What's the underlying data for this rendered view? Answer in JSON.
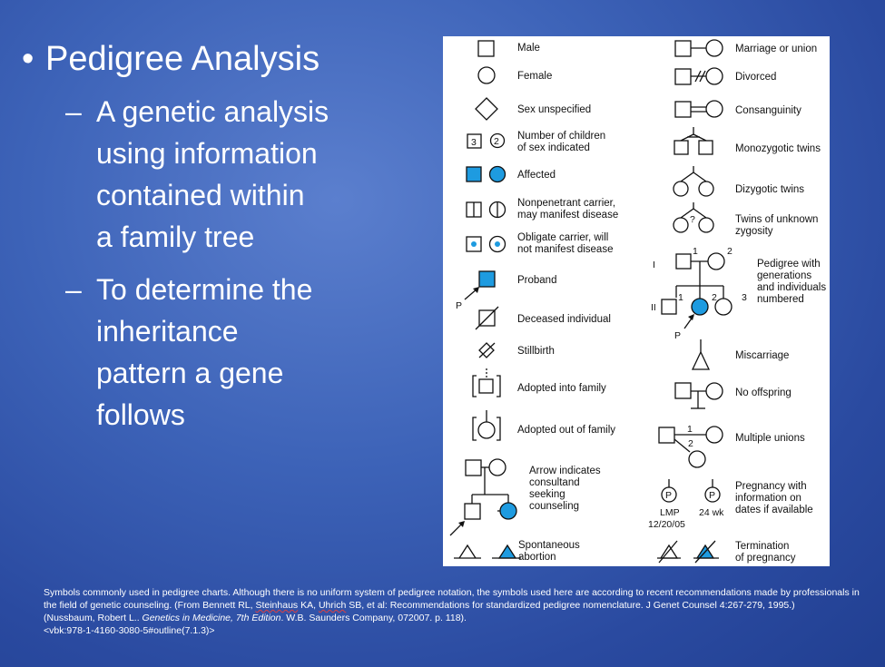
{
  "slide": {
    "bullet": "Pedigree Analysis",
    "subpoints": [
      "A genetic analysis\nusing information\ncontained within\na family tree",
      "To determine the\ninheritance\npattern a gene\nfollows"
    ]
  },
  "chart": {
    "left": [
      {
        "label": "Male"
      },
      {
        "label": "Female"
      },
      {
        "label": "Sex unspecified"
      },
      {
        "label": "Number of children of sex indicated",
        "line1": "Number of children",
        "line2": "of sex indicated",
        "n1": "3",
        "n2": "2"
      },
      {
        "label": "Affected"
      },
      {
        "label": "Nonpenetrant carrier, may manifest disease",
        "line1": "Nonpenetrant carrier,",
        "line2": "may manifest disease"
      },
      {
        "label": "Obligate carrier, will not manifest disease",
        "line1": "Obligate carrier, will",
        "line2": "not manifest disease"
      },
      {
        "label": "Proband",
        "p": "P"
      },
      {
        "label": "Deceased individual"
      },
      {
        "label": "Stillbirth"
      },
      {
        "label": "Adopted into family"
      },
      {
        "label": "Adopted out of family"
      },
      {
        "label": "Arrow indicates consultand seeking counseling",
        "lines": [
          "Arrow indicates",
          "consultand",
          "seeking",
          "counseling"
        ]
      },
      {
        "label": "Spontaneous abortion",
        "line1": "Spontaneous",
        "line2": "abortion"
      }
    ],
    "right": [
      {
        "label": "Marriage or union"
      },
      {
        "label": "Divorced"
      },
      {
        "label": "Consanguinity"
      },
      {
        "label": "Monozygotic twins"
      },
      {
        "label": "Dizygotic twins"
      },
      {
        "label": "Twins of unknown zygosity",
        "line1": "Twins of unknown",
        "line2": "zygosity",
        "q": "?"
      },
      {
        "label": "Pedigree with generations and individuals numbered",
        "lines": [
          "Pedigree with",
          "generations",
          "and individuals",
          "numbered"
        ],
        "gen1": "I",
        "gen2": "II",
        "n1": "1",
        "n2": "2",
        "n3": "1",
        "n4": "2",
        "n5": "3",
        "p": "P"
      },
      {
        "label": "Miscarriage"
      },
      {
        "label": "No offspring"
      },
      {
        "label": "Multiple unions",
        "n1": "1",
        "n2": "2"
      },
      {
        "label": "Pregnancy with information on dates if available",
        "lines": [
          "Pregnancy with",
          "information on",
          "dates if available"
        ],
        "p": "P",
        "lmp": "LMP",
        "date": "12/20/05",
        "wk": "24 wk"
      },
      {
        "label": "Termination of pregnancy",
        "line1": "Termination",
        "line2": "of pregnancy"
      }
    ]
  },
  "caption": {
    "line1a": "Symbols commonly used in pedigree charts. Although there is no uniform system of pedigree notation, the symbols used here are according to recent recommendations made by professionals in the field of genetic counseling. (From Bennett RL, ",
    "steinhaus": "Steinhaus",
    "mid1": " KA, ",
    "uhrich": "Uhrich",
    "line1b": " SB, et al: Recommendations for standardized pedigree nomenclature. J Genet Counsel 4:267-279, 1995.)",
    "line2a": "(Nussbaum, Robert L.. ",
    "book": "Genetics in Medicine, 7th Edition",
    "line2b": ". W.B. Saunders Company, 072007. p. 118).",
    "line3": "<vbk:978-1-4160-3080-5#outline(7.1.3)>"
  },
  "colors": {
    "affected": "#1e9be0",
    "panel_bg": "#ffffff",
    "slide_text": "#ffffff"
  }
}
